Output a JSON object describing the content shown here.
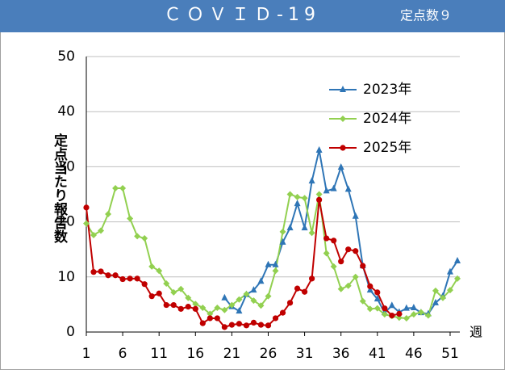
{
  "chart_data": {
    "type": "line",
    "title": "ＣＯＶＩＤ-19",
    "subtitle": "定点数９",
    "y_label": "定点当たり報告数",
    "x_label": "週",
    "x": [
      1,
      2,
      3,
      4,
      5,
      6,
      7,
      8,
      9,
      10,
      11,
      12,
      13,
      14,
      15,
      16,
      17,
      18,
      19,
      20,
      21,
      22,
      23,
      24,
      25,
      26,
      27,
      28,
      29,
      30,
      31,
      32,
      33,
      34,
      35,
      36,
      37,
      38,
      39,
      40,
      41,
      42,
      43,
      44,
      45,
      46,
      47,
      48,
      49,
      50,
      51,
      52
    ],
    "xlim": [
      1,
      52
    ],
    "xticks": [
      1,
      6,
      11,
      16,
      21,
      26,
      31,
      36,
      41,
      46,
      51
    ],
    "ylim": [
      0,
      50
    ],
    "yticks": [
      0,
      10,
      20,
      30,
      40,
      50
    ],
    "grid": true,
    "legend": "upper right",
    "series": [
      {
        "name": "2023年",
        "color": "#2e75b6",
        "marker": "triangle",
        "values": [
          null,
          null,
          null,
          null,
          null,
          null,
          null,
          null,
          null,
          null,
          null,
          null,
          null,
          null,
          null,
          null,
          null,
          null,
          null,
          6.2,
          4.6,
          3.8,
          6.8,
          7.6,
          9.2,
          12.2,
          12.2,
          16.3,
          18.9,
          23.3,
          18.9,
          27.4,
          33.0,
          25.6,
          26.0,
          29.9,
          25.9,
          21.0,
          12.0,
          7.6,
          6.0,
          3.5,
          4.8,
          3.6,
          4.3,
          4.4,
          3.5,
          3.3,
          5.3,
          6.5,
          10.9,
          12.9
        ]
      },
      {
        "name": "2024年",
        "color": "#92d050",
        "marker": "diamond",
        "values": [
          19.7,
          17.6,
          18.4,
          21.4,
          26.1,
          26.1,
          20.6,
          17.4,
          17.0,
          11.9,
          11.1,
          8.8,
          7.2,
          7.8,
          6.2,
          5.1,
          4.4,
          3.3,
          4.4,
          4.0,
          4.9,
          5.9,
          6.9,
          5.7,
          4.8,
          6.5,
          11.1,
          18.2,
          25.0,
          24.5,
          24.3,
          18.0,
          25.0,
          14.3,
          11.9,
          7.8,
          8.4,
          10.0,
          5.6,
          4.2,
          4.3,
          3.2,
          2.9,
          2.6,
          2.5,
          3.2,
          3.6,
          3.0,
          7.5,
          6.2,
          7.6,
          9.7
        ]
      },
      {
        "name": "2025年",
        "color": "#c00000",
        "marker": "circle",
        "values": [
          22.6,
          10.9,
          11.0,
          10.3,
          10.3,
          9.6,
          9.7,
          9.7,
          8.7,
          6.5,
          7.0,
          4.9,
          4.9,
          4.2,
          4.6,
          4.2,
          1.6,
          2.5,
          2.5,
          0.9,
          1.3,
          1.5,
          1.2,
          1.7,
          1.3,
          1.2,
          2.5,
          3.5,
          5.3,
          7.9,
          7.3,
          9.7,
          24.0,
          17.0,
          16.6,
          12.8,
          15.0,
          14.7,
          12.0,
          8.3,
          7.2,
          4.3,
          3.0,
          3.3,
          null,
          null,
          null,
          null,
          null,
          null,
          null,
          null
        ]
      }
    ]
  }
}
